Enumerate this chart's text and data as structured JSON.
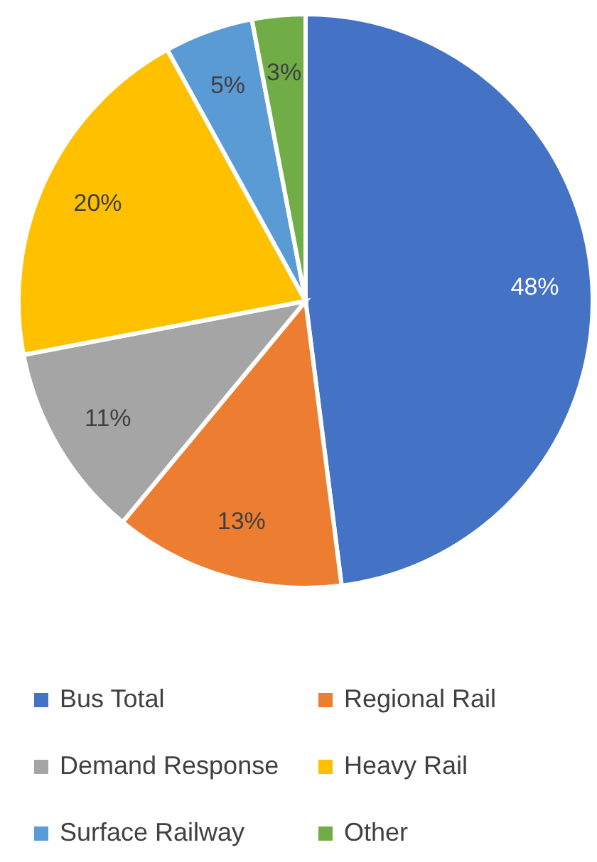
{
  "chart_data": {
    "type": "pie",
    "categories": [
      "Bus Total",
      "Regional Rail",
      "Demand Response",
      "Heavy Rail",
      "Surface Railway",
      "Other"
    ],
    "values": [
      48,
      13,
      11,
      20,
      5,
      3
    ],
    "colors": [
      "#4472c4",
      "#ed7d31",
      "#a5a5a5",
      "#ffc000",
      "#5b9bd5",
      "#70ad47"
    ],
    "value_labels": [
      "48%",
      "13%",
      "11%",
      "20%",
      "5%",
      "3%"
    ],
    "legend": "bottom"
  }
}
